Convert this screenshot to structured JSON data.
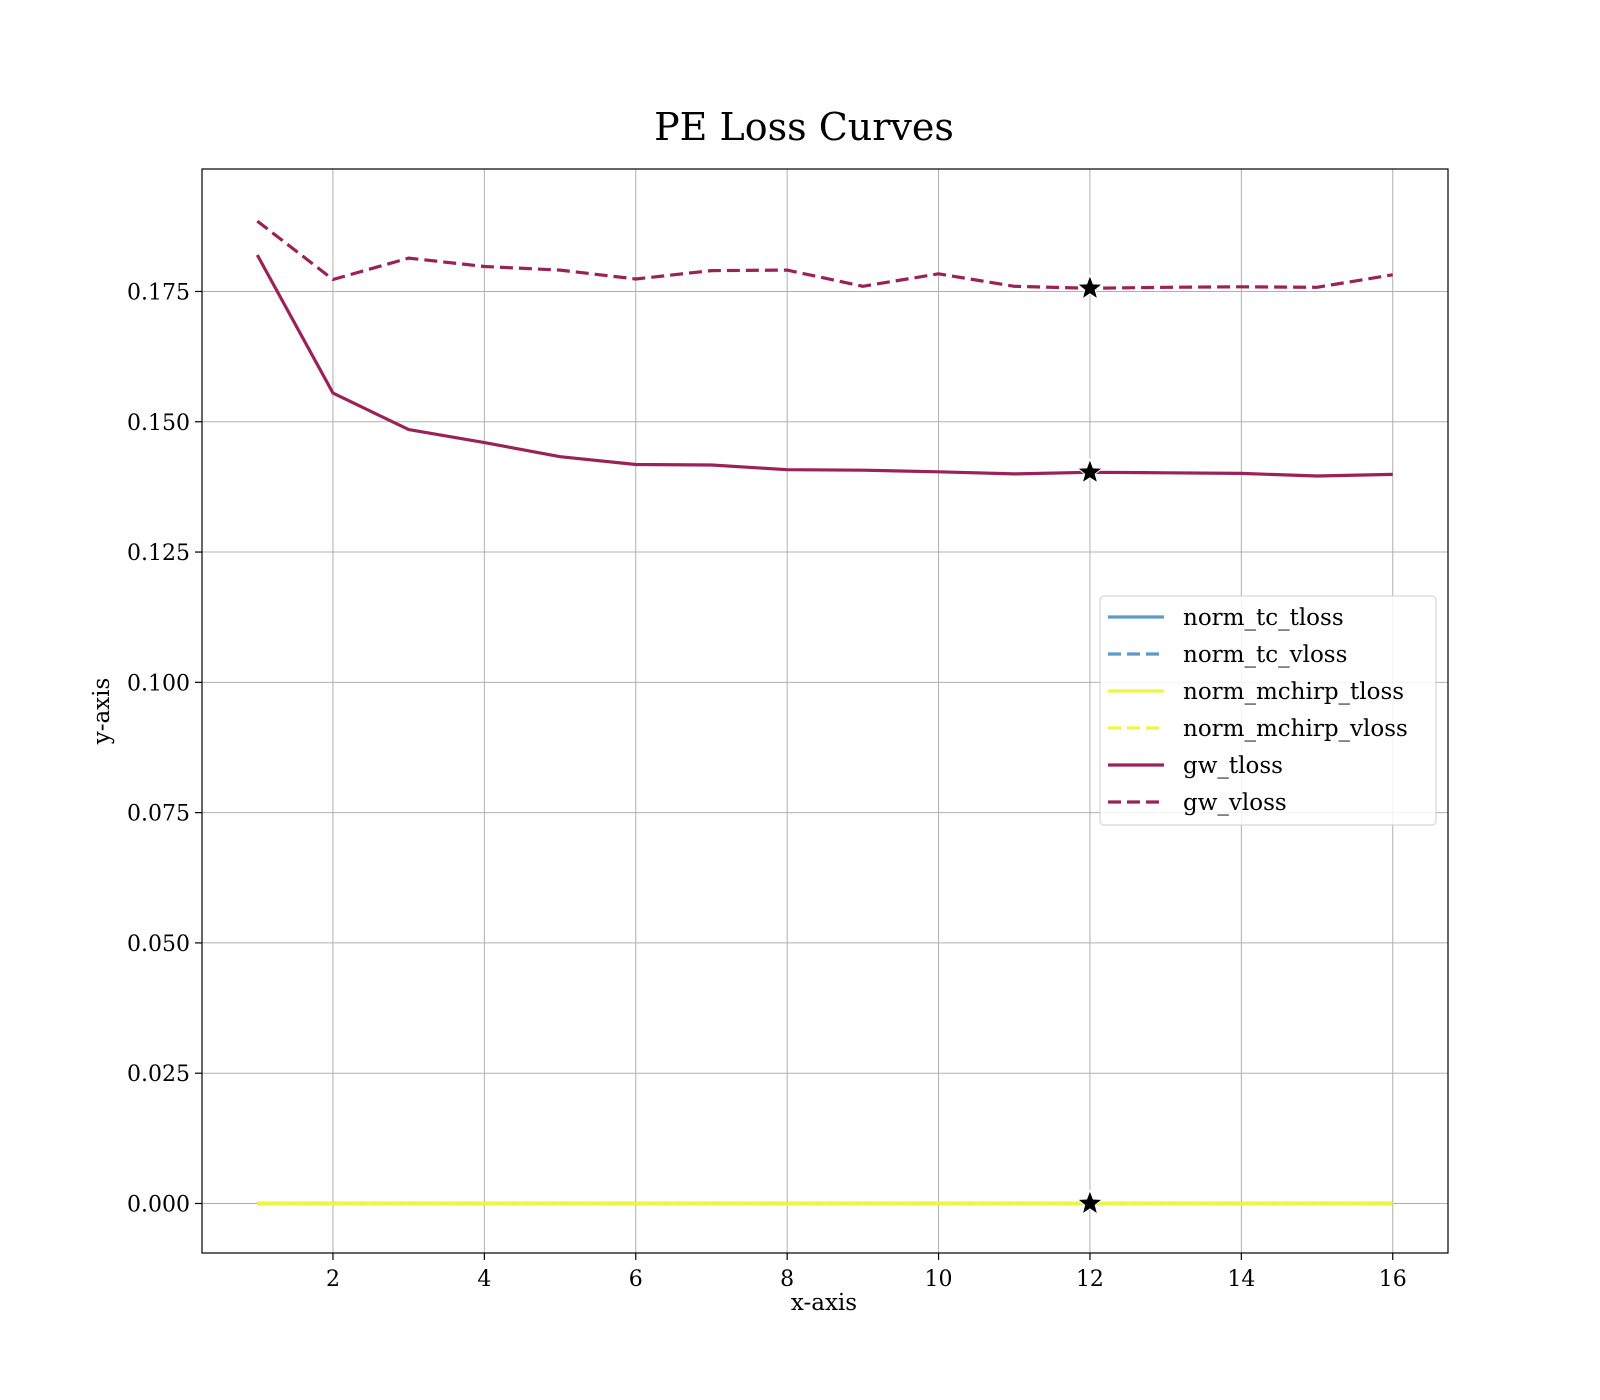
{
  "chart_data": {
    "type": "line",
    "title": "PE Loss Curves",
    "xlabel": "x-axis",
    "ylabel": "y-axis",
    "xlim": [
      0.27,
      16.73
    ],
    "ylim": [
      -0.0095,
      0.1985
    ],
    "xticks": [
      2,
      4,
      6,
      8,
      10,
      12,
      14,
      16
    ],
    "xtick_labels": [
      "2",
      "4",
      "6",
      "8",
      "10",
      "12",
      "14",
      "16"
    ],
    "yticks": [
      0,
      0.025,
      0.05,
      0.075,
      0.1,
      0.125,
      0.15,
      0.175
    ],
    "ytick_labels": [
      "0.000",
      "0.025",
      "0.050",
      "0.075",
      "0.100",
      "0.125",
      "0.150",
      "0.175"
    ],
    "grid": true,
    "legend_position": "center-right",
    "x": [
      1,
      2,
      3,
      4,
      5,
      6,
      7,
      8,
      9,
      10,
      11,
      12,
      13,
      14,
      15,
      16
    ],
    "series": [
      {
        "name": "norm_tc_tloss",
        "color": "#5b9bc8",
        "dash": "solid",
        "values": [
          0,
          0,
          0,
          0,
          0,
          0,
          0,
          0,
          0,
          0,
          0,
          0,
          0,
          0,
          0,
          0
        ]
      },
      {
        "name": "norm_tc_vloss",
        "color": "#5b9bc8",
        "dash": "dashed",
        "values": [
          0,
          0,
          0,
          0,
          0,
          0,
          0,
          0,
          0,
          0,
          0,
          0,
          0,
          0,
          0,
          0
        ]
      },
      {
        "name": "norm_mchirp_tloss",
        "color": "#eef542",
        "dash": "solid",
        "values": [
          0,
          0,
          0,
          0,
          0,
          0,
          0,
          0,
          0,
          0,
          0,
          0,
          0,
          0,
          0,
          0
        ]
      },
      {
        "name": "norm_mchirp_vloss",
        "color": "#eef542",
        "dash": "dashed",
        "values": [
          0,
          0,
          0,
          0,
          0,
          0,
          0,
          0,
          0,
          0,
          0,
          0,
          0,
          0,
          0,
          0
        ]
      },
      {
        "name": "gw_tloss",
        "color": "#9b2259",
        "dash": "solid",
        "values": [
          0.182,
          0.1555,
          0.1485,
          0.146,
          0.1433,
          0.1418,
          0.1417,
          0.1408,
          0.1407,
          0.1404,
          0.14,
          0.1403,
          0.1402,
          0.1401,
          0.1396,
          0.1399
        ]
      },
      {
        "name": "gw_vloss",
        "color": "#9b2259",
        "dash": "dashed",
        "values": [
          0.1885,
          0.1773,
          0.1814,
          0.1798,
          0.1791,
          0.1774,
          0.179,
          0.1791,
          0.176,
          0.1784,
          0.176,
          0.1756,
          0.1758,
          0.1759,
          0.1758,
          0.1782
        ]
      }
    ],
    "markers": [
      {
        "symbol": "star",
        "x": 12,
        "y": 0.1756
      },
      {
        "symbol": "star",
        "x": 12,
        "y": 0.1403
      },
      {
        "symbol": "star",
        "x": 12,
        "y": 0
      }
    ]
  }
}
